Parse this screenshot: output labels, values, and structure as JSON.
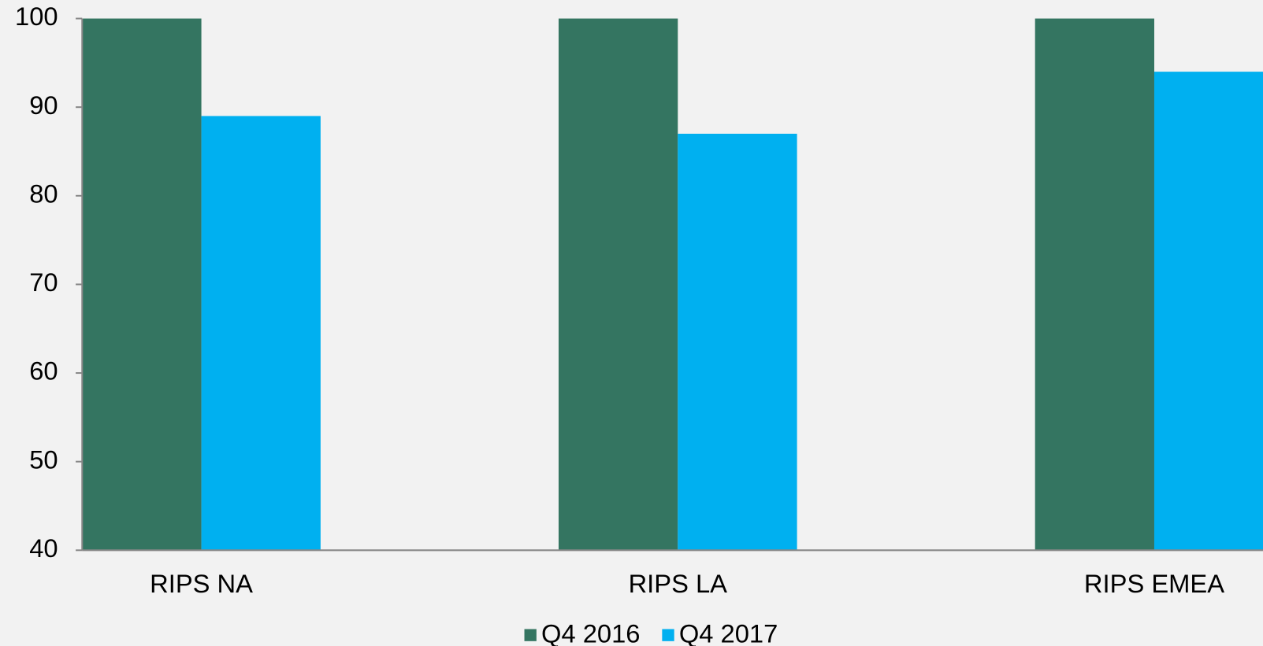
{
  "chart_data": {
    "type": "bar",
    "categories": [
      "RIPS NA",
      "RIPS LA",
      "RIPS EMEA"
    ],
    "series": [
      {
        "name": "Q4 2016",
        "color": "#347561",
        "values": [
          100,
          100,
          100
        ]
      },
      {
        "name": "Q4 2017",
        "color": "#00b0f0",
        "values": [
          89,
          87,
          94
        ]
      }
    ],
    "ylim": [
      40,
      100
    ],
    "yticks": [
      40,
      50,
      60,
      70,
      80,
      90,
      100
    ],
    "grid": false,
    "legend": "bottom"
  }
}
